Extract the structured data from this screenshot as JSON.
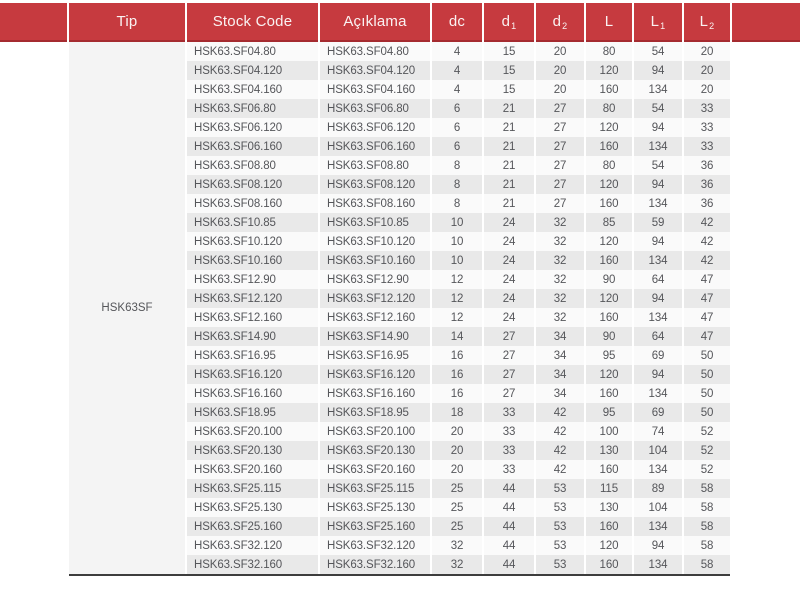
{
  "colors": {
    "header_red": "#c63a3f",
    "header_border_red": "#a52b30",
    "header_text": "#faf2f2",
    "row_light": "#fafafa",
    "row_dark": "#e9e9e9",
    "tip_cell_bg": "#f4f4f4",
    "body_text": "#55565a",
    "bottom_rule": "#3d3d3d"
  },
  "table": {
    "tip_group_label": "HSK63SF",
    "headers": [
      {
        "label": "Tip",
        "sub": ""
      },
      {
        "label": "Stock Code",
        "sub": ""
      },
      {
        "label": "Açıklama",
        "sub": ""
      },
      {
        "label": "dc",
        "sub": ""
      },
      {
        "label": "d",
        "sub": "1"
      },
      {
        "label": "d",
        "sub": "2"
      },
      {
        "label": "L",
        "sub": ""
      },
      {
        "label": "L",
        "sub": "1"
      },
      {
        "label": "L",
        "sub": "2"
      }
    ],
    "rows": [
      {
        "stock_code": "HSK63.SF04.80",
        "aciklama": "HSK63.SF04.80",
        "dc": "4",
        "d1": "15",
        "d2": "20",
        "L": "80",
        "L1": "54",
        "L2": "20"
      },
      {
        "stock_code": "HSK63.SF04.120",
        "aciklama": "HSK63.SF04.120",
        "dc": "4",
        "d1": "15",
        "d2": "20",
        "L": "120",
        "L1": "94",
        "L2": "20"
      },
      {
        "stock_code": "HSK63.SF04.160",
        "aciklama": "HSK63.SF04.160",
        "dc": "4",
        "d1": "15",
        "d2": "20",
        "L": "160",
        "L1": "134",
        "L2": "20"
      },
      {
        "stock_code": "HSK63.SF06.80",
        "aciklama": "HSK63.SF06.80",
        "dc": "6",
        "d1": "21",
        "d2": "27",
        "L": "80",
        "L1": "54",
        "L2": "33"
      },
      {
        "stock_code": "HSK63.SF06.120",
        "aciklama": "HSK63.SF06.120",
        "dc": "6",
        "d1": "21",
        "d2": "27",
        "L": "120",
        "L1": "94",
        "L2": "33"
      },
      {
        "stock_code": "HSK63.SF06.160",
        "aciklama": "HSK63.SF06.160",
        "dc": "6",
        "d1": "21",
        "d2": "27",
        "L": "160",
        "L1": "134",
        "L2": "33"
      },
      {
        "stock_code": "HSK63.SF08.80",
        "aciklama": "HSK63.SF08.80",
        "dc": "8",
        "d1": "21",
        "d2": "27",
        "L": "80",
        "L1": "54",
        "L2": "36"
      },
      {
        "stock_code": "HSK63.SF08.120",
        "aciklama": "HSK63.SF08.120",
        "dc": "8",
        "d1": "21",
        "d2": "27",
        "L": "120",
        "L1": "94",
        "L2": "36"
      },
      {
        "stock_code": "HSK63.SF08.160",
        "aciklama": "HSK63.SF08.160",
        "dc": "8",
        "d1": "21",
        "d2": "27",
        "L": "160",
        "L1": "134",
        "L2": "36"
      },
      {
        "stock_code": "HSK63.SF10.85",
        "aciklama": "HSK63.SF10.85",
        "dc": "10",
        "d1": "24",
        "d2": "32",
        "L": "85",
        "L1": "59",
        "L2": "42"
      },
      {
        "stock_code": "HSK63.SF10.120",
        "aciklama": "HSK63.SF10.120",
        "dc": "10",
        "d1": "24",
        "d2": "32",
        "L": "120",
        "L1": "94",
        "L2": "42"
      },
      {
        "stock_code": "HSK63.SF10.160",
        "aciklama": "HSK63.SF10.160",
        "dc": "10",
        "d1": "24",
        "d2": "32",
        "L": "160",
        "L1": "134",
        "L2": "42"
      },
      {
        "stock_code": "HSK63.SF12.90",
        "aciklama": "HSK63.SF12.90",
        "dc": "12",
        "d1": "24",
        "d2": "32",
        "L": "90",
        "L1": "64",
        "L2": "47"
      },
      {
        "stock_code": "HSK63.SF12.120",
        "aciklama": "HSK63.SF12.120",
        "dc": "12",
        "d1": "24",
        "d2": "32",
        "L": "120",
        "L1": "94",
        "L2": "47"
      },
      {
        "stock_code": "HSK63.SF12.160",
        "aciklama": "HSK63.SF12.160",
        "dc": "12",
        "d1": "24",
        "d2": "32",
        "L": "160",
        "L1": "134",
        "L2": "47"
      },
      {
        "stock_code": "HSK63.SF14.90",
        "aciklama": "HSK63.SF14.90",
        "dc": "14",
        "d1": "27",
        "d2": "34",
        "L": "90",
        "L1": "64",
        "L2": "47"
      },
      {
        "stock_code": "HSK63.SF16.95",
        "aciklama": "HSK63.SF16.95",
        "dc": "16",
        "d1": "27",
        "d2": "34",
        "L": "95",
        "L1": "69",
        "L2": "50"
      },
      {
        "stock_code": "HSK63.SF16.120",
        "aciklama": "HSK63.SF16.120",
        "dc": "16",
        "d1": "27",
        "d2": "34",
        "L": "120",
        "L1": "94",
        "L2": "50"
      },
      {
        "stock_code": "HSK63.SF16.160",
        "aciklama": "HSK63.SF16.160",
        "dc": "16",
        "d1": "27",
        "d2": "34",
        "L": "160",
        "L1": "134",
        "L2": "50"
      },
      {
        "stock_code": "HSK63.SF18.95",
        "aciklama": "HSK63.SF18.95",
        "dc": "18",
        "d1": "33",
        "d2": "42",
        "L": "95",
        "L1": "69",
        "L2": "50"
      },
      {
        "stock_code": "HSK63.SF20.100",
        "aciklama": "HSK63.SF20.100",
        "dc": "20",
        "d1": "33",
        "d2": "42",
        "L": "100",
        "L1": "74",
        "L2": "52"
      },
      {
        "stock_code": "HSK63.SF20.130",
        "aciklama": "HSK63.SF20.130",
        "dc": "20",
        "d1": "33",
        "d2": "42",
        "L": "130",
        "L1": "104",
        "L2": "52"
      },
      {
        "stock_code": "HSK63.SF20.160",
        "aciklama": "HSK63.SF20.160",
        "dc": "20",
        "d1": "33",
        "d2": "42",
        "L": "160",
        "L1": "134",
        "L2": "52"
      },
      {
        "stock_code": "HSK63.SF25.115",
        "aciklama": "HSK63.SF25.115",
        "dc": "25",
        "d1": "44",
        "d2": "53",
        "L": "115",
        "L1": "89",
        "L2": "58"
      },
      {
        "stock_code": "HSK63.SF25.130",
        "aciklama": "HSK63.SF25.130",
        "dc": "25",
        "d1": "44",
        "d2": "53",
        "L": "130",
        "L1": "104",
        "L2": "58"
      },
      {
        "stock_code": "HSK63.SF25.160",
        "aciklama": "HSK63.SF25.160",
        "dc": "25",
        "d1": "44",
        "d2": "53",
        "L": "160",
        "L1": "134",
        "L2": "58"
      },
      {
        "stock_code": "HSK63.SF32.120",
        "aciklama": "HSK63.SF32.120",
        "dc": "32",
        "d1": "44",
        "d2": "53",
        "L": "120",
        "L1": "94",
        "L2": "58"
      },
      {
        "stock_code": "HSK63.SF32.160",
        "aciklama": "HSK63.SF32.160",
        "dc": "32",
        "d1": "44",
        "d2": "53",
        "L": "160",
        "L1": "134",
        "L2": "58"
      }
    ]
  }
}
